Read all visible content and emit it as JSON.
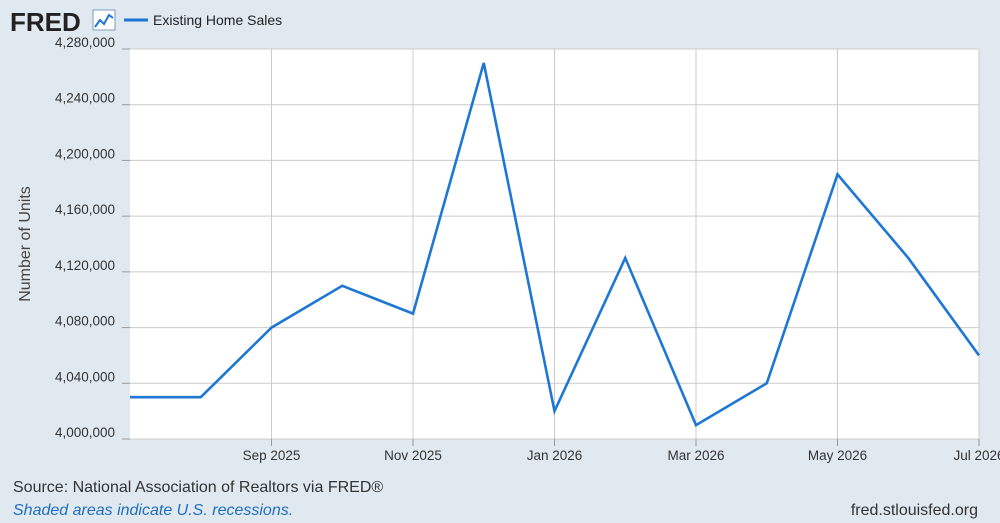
{
  "header": {
    "logo_text": "FRED",
    "logo_icon": "line-chart-icon",
    "legend": [
      {
        "label": "Existing Home Sales",
        "color": "#1f77d4"
      }
    ]
  },
  "footer": {
    "source": "Source: National Association of Realtors via FRED®",
    "note": "Shaded areas indicate U.S. recessions.",
    "url": "fred.stlouisfed.org"
  },
  "colors": {
    "background": "#e1e9f0",
    "plot_background": "#ffffff",
    "series": "#1f77d4",
    "grid": "#cccccc",
    "logo": "#222222"
  },
  "chart_data": {
    "type": "line",
    "ylabel": "Number of Units",
    "ylim": [
      4000000,
      4280000
    ],
    "y_ticks": [
      4000000,
      4040000,
      4080000,
      4120000,
      4160000,
      4200000,
      4240000,
      4280000
    ],
    "y_tick_labels": [
      "4,000,000",
      "4,040,000",
      "4,080,000",
      "4,120,000",
      "4,160,000",
      "4,200,000",
      "4,240,000",
      "4,280,000"
    ],
    "x": [
      "2025-07",
      "2025-08",
      "2025-09",
      "2025-10",
      "2025-11",
      "2025-12",
      "2026-01",
      "2026-02",
      "2026-03",
      "2026-04",
      "2026-05",
      "2026-06",
      "2026-07"
    ],
    "x_ticks": [
      "2025-09",
      "2025-11",
      "2026-01",
      "2026-03",
      "2026-05",
      "2026-07"
    ],
    "x_tick_labels": [
      "Sep 2025",
      "Nov 2025",
      "Jan 2026",
      "Mar 2026",
      "May 2026",
      "Jul 2026"
    ],
    "grid": true,
    "legend_position": "top-left",
    "series": [
      {
        "name": "Existing Home Sales",
        "values": [
          4030000,
          4030000,
          4080000,
          4110000,
          4090000,
          4270000,
          4020000,
          4130000,
          4010000,
          4040000,
          4190000,
          4130000,
          4060000
        ]
      }
    ]
  }
}
